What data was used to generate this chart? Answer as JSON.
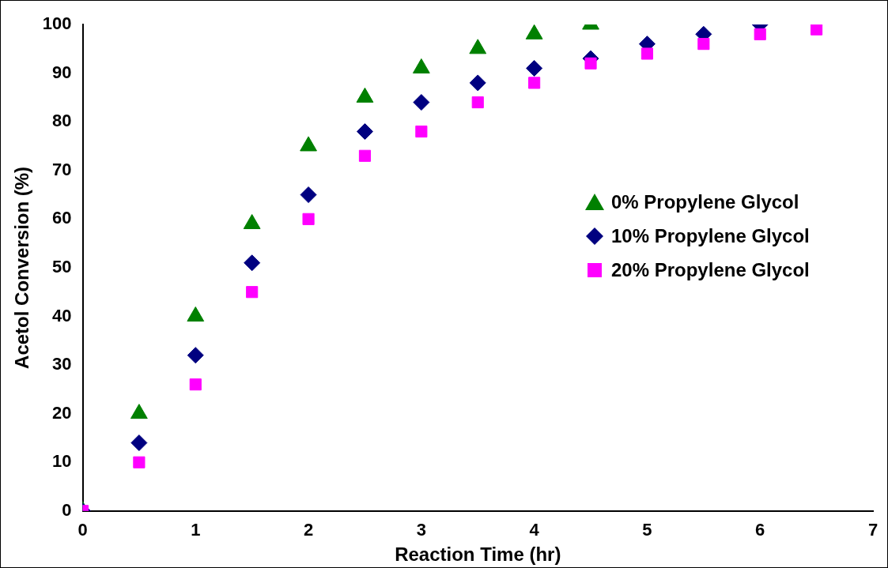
{
  "chart_data": {
    "type": "scatter",
    "xlabel": "Reaction Time (hr)",
    "ylabel": "Acetol Conversion (%)",
    "xlim": [
      0,
      7
    ],
    "xticks": [
      0,
      1,
      2,
      3,
      4,
      5,
      6,
      7
    ],
    "ylim": [
      0,
      100
    ],
    "yticks": [
      0,
      10,
      20,
      30,
      40,
      50,
      60,
      70,
      80,
      90,
      100
    ],
    "grid": false,
    "legend": "right",
    "series": [
      {
        "name": "0% Propylene Glycol",
        "color": "#008000",
        "marker": "triangle",
        "x": [
          0,
          0.5,
          1,
          1.5,
          2,
          2.5,
          3,
          3.5,
          4,
          4.5
        ],
        "values": [
          0,
          20,
          40,
          59,
          75,
          85,
          91,
          95,
          98,
          100
        ]
      },
      {
        "name": "10% Propylene Glycol",
        "color": "#000080",
        "marker": "diamond",
        "x": [
          0,
          0.5,
          1,
          1.5,
          2,
          2.5,
          3,
          3.5,
          4,
          4.5,
          5,
          5.5,
          6
        ],
        "values": [
          0,
          14,
          32,
          51,
          65,
          78,
          84,
          88,
          91,
          93,
          96,
          98,
          100
        ]
      },
      {
        "name": "20% Propylene Glycol",
        "color": "#ff00ff",
        "marker": "square",
        "x": [
          0,
          0.5,
          1,
          1.5,
          2,
          2.5,
          3,
          3.5,
          4,
          4.5,
          5,
          5.5,
          6,
          6.5
        ],
        "values": [
          0,
          10,
          26,
          45,
          60,
          73,
          78,
          84,
          88,
          92,
          94,
          96,
          98,
          99
        ]
      }
    ]
  }
}
